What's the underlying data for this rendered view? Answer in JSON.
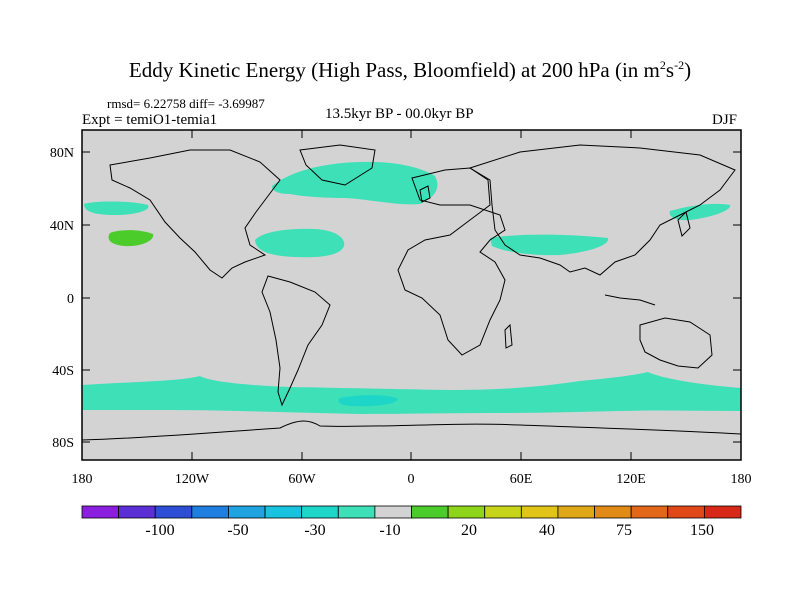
{
  "title": {
    "main": "Eddy Kinetic Energy (High Pass, Bloomfield) at 200 hPa (in m",
    "sup1": "2",
    "mid": "s",
    "sup2": "-2",
    "end": ")"
  },
  "stats": "rmsd= 6.22758 diff= -3.69987",
  "experiment": "Expt = temiO1-temia1",
  "period": "13.5kyr BP - 00.0kyr BP",
  "season": "DJF",
  "map": {
    "projection": "cylindrical equidistant",
    "background_color": "#d3d3d3",
    "lat_ticks": [
      "80N",
      "40N",
      "0",
      "40S",
      "80S"
    ],
    "lon_ticks": [
      "180",
      "120W",
      "60W",
      "0",
      "60E",
      "120E",
      "180"
    ]
  },
  "colorbar": {
    "colors": [
      "#8a1fe0",
      "#5a2fd6",
      "#2d4fd8",
      "#1f7fe0",
      "#1fa4e0",
      "#18c3e0",
      "#1ed6c8",
      "#3ee0b8",
      "#d3d3d3",
      "#4ccc2a",
      "#8ed41a",
      "#c8d41a",
      "#e0c418",
      "#e0a818",
      "#e08a18",
      "#e06818",
      "#e04818",
      "#d82818"
    ],
    "labels": [
      "-100",
      "-50",
      "-30",
      "-10",
      "20",
      "40",
      "75",
      "150"
    ]
  },
  "regions": [
    {
      "name": "anomaly-north-atlantic",
      "color": "#3ee0b8"
    },
    {
      "name": "anomaly-north-pacific",
      "color": "#3ee0b8"
    },
    {
      "name": "anomaly-positive-pacific",
      "color": "#4ccc2a"
    },
    {
      "name": "anomaly-southern-ocean",
      "color": "#3ee0b8"
    }
  ]
}
